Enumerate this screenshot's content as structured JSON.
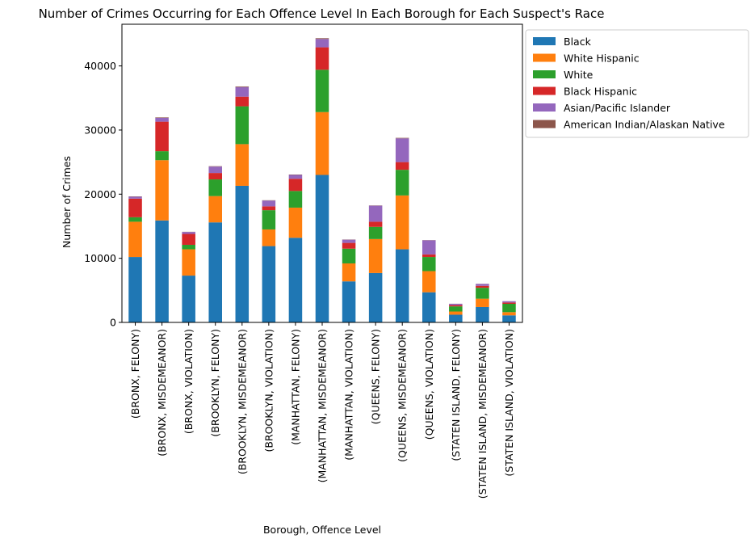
{
  "chart_data": {
    "type": "bar",
    "stacked": true,
    "title": "Number of Crimes Occurring for Each Offence Level In Each Borough for Each Suspect's Race",
    "xlabel": "Borough, Offence Level",
    "ylabel": "Number of Crimes",
    "ylim": [
      0,
      46500
    ],
    "yticks": [
      0,
      10000,
      20000,
      30000,
      40000
    ],
    "ytick_labels": [
      "0",
      "10000",
      "20000",
      "30000",
      "40000"
    ],
    "grid": false,
    "legend_position": "outside-top-right",
    "categories": [
      "(BRONX, FELONY)",
      "(BRONX, MISDEMEANOR)",
      "(BRONX, VIOLATION)",
      "(BROOKLYN, FELONY)",
      "(BROOKLYN, MISDEMEANOR)",
      "(BROOKLYN, VIOLATION)",
      "(MANHATTAN, FELONY)",
      "(MANHATTAN, MISDEMEANOR)",
      "(MANHATTAN, VIOLATION)",
      "(QUEENS, FELONY)",
      "(QUEENS, MISDEMEANOR)",
      "(QUEENS, VIOLATION)",
      "(STATEN ISLAND, FELONY)",
      "(STATEN ISLAND, MISDEMEANOR)",
      "(STATEN ISLAND, VIOLATION)"
    ],
    "series": [
      {
        "name": "Black",
        "color": "#1f77b4",
        "values": [
          10200,
          15900,
          7300,
          15600,
          21300,
          11900,
          13200,
          23000,
          6400,
          7700,
          11400,
          4700,
          1200,
          2400,
          1100
        ]
      },
      {
        "name": "White Hispanic",
        "color": "#ff7f0e",
        "values": [
          5500,
          9400,
          4100,
          4100,
          6500,
          2600,
          4700,
          9800,
          2800,
          5300,
          8400,
          3300,
          500,
          1300,
          500
        ]
      },
      {
        "name": "White",
        "color": "#2ca02c",
        "values": [
          700,
          1400,
          700,
          2600,
          5900,
          3000,
          2600,
          6600,
          2300,
          1900,
          4000,
          2200,
          800,
          1700,
          1300
        ]
      },
      {
        "name": "Black Hispanic",
        "color": "#d62728",
        "values": [
          2900,
          4600,
          1700,
          1000,
          1500,
          600,
          1900,
          3500,
          900,
          800,
          1200,
          400,
          200,
          300,
          200
        ]
      },
      {
        "name": "Asian/Pacific Islander",
        "color": "#9467bd",
        "values": [
          300,
          600,
          300,
          1000,
          1500,
          900,
          600,
          1300,
          500,
          2500,
          3700,
          2200,
          200,
          300,
          200
        ]
      },
      {
        "name": "American Indian/Alaskan Native",
        "color": "#8c564b",
        "values": [
          50,
          80,
          30,
          60,
          100,
          50,
          60,
          120,
          30,
          40,
          80,
          30,
          10,
          20,
          10
        ]
      }
    ]
  }
}
